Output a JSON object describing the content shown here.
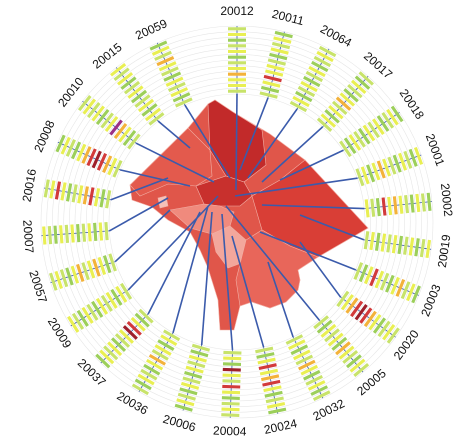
{
  "chart_data": {
    "type": "radial-glyph-map",
    "title": "",
    "rings": 12,
    "colors": {
      "seg_light": "#c8e36a",
      "seg_green": "#9ccf5a",
      "seg_yellow": "#e9ef52",
      "seg_orange": "#f3b23a",
      "seg_red": "#d23a3a",
      "seg_darkred": "#9e1f2a",
      "seg_purple": "#9b2f86",
      "leader": "#3b5bab",
      "map_base": "#e0564a",
      "map_dark": "#c22a2a",
      "map_light": "#f3a79c"
    },
    "glyphs": [
      {
        "zip": "20012",
        "angle": -90,
        "bars": [
          "l",
          "y",
          "y",
          "o",
          "y",
          "l",
          "g",
          "y",
          "l",
          "g",
          "y",
          "l"
        ]
      },
      {
        "zip": "20011",
        "angle": -76,
        "bars": [
          "l",
          "g",
          "y",
          "r",
          "y",
          "y",
          "l",
          "g",
          "y",
          "l",
          "y",
          "g"
        ]
      },
      {
        "zip": "20064",
        "angle": -62,
        "bars": [
          "l",
          "y",
          "g",
          "l",
          "y",
          "g",
          "l",
          "y",
          "g",
          "l",
          "y",
          "l"
        ]
      },
      {
        "zip": "20017",
        "angle": -48,
        "bars": [
          "l",
          "y",
          "g",
          "y",
          "l",
          "o",
          "y",
          "g",
          "l",
          "y",
          "g",
          "l"
        ]
      },
      {
        "zip": "20018",
        "angle": -34,
        "bars": [
          "l",
          "g",
          "y",
          "l",
          "g",
          "y",
          "l",
          "y",
          "g",
          "l",
          "y",
          "g"
        ]
      },
      {
        "zip": "20001",
        "angle": -20,
        "bars": [
          "l",
          "y",
          "g",
          "y",
          "o",
          "y",
          "l",
          "g",
          "y",
          "l",
          "g",
          "y"
        ]
      },
      {
        "zip": "20002",
        "angle": -6,
        "bars": [
          "y",
          "l",
          "g",
          "r",
          "y",
          "o",
          "y",
          "l",
          "g",
          "y",
          "l",
          "g"
        ]
      },
      {
        "zip": "20019",
        "angle": 8,
        "bars": [
          "l",
          "y",
          "g",
          "y",
          "l",
          "y",
          "g",
          "l",
          "y",
          "g",
          "l",
          "y"
        ]
      },
      {
        "zip": "20003",
        "angle": 22,
        "bars": [
          "l",
          "g",
          "y",
          "r",
          "y",
          "l",
          "g",
          "y",
          "o",
          "l",
          "y",
          "g"
        ]
      },
      {
        "zip": "20020",
        "angle": 36,
        "bars": [
          "l",
          "y",
          "o",
          "r",
          "d",
          "r",
          "o",
          "y",
          "g",
          "l",
          "y",
          "l"
        ]
      },
      {
        "zip": "20005",
        "angle": 50,
        "bars": [
          "l",
          "g",
          "y",
          "l",
          "y",
          "g",
          "o",
          "y",
          "l",
          "g",
          "y",
          "l"
        ]
      },
      {
        "zip": "20032",
        "angle": 64,
        "bars": [
          "l",
          "y",
          "g",
          "y",
          "l",
          "o",
          "y",
          "g",
          "l",
          "y",
          "g",
          "l"
        ]
      },
      {
        "zip": "20024",
        "angle": 78,
        "bars": [
          "l",
          "g",
          "y",
          "r",
          "y",
          "o",
          "r",
          "y",
          "g",
          "l",
          "y",
          "g"
        ]
      },
      {
        "zip": "20004",
        "angle": 92,
        "bars": [
          "l",
          "y",
          "g",
          "d",
          "y",
          "l",
          "r",
          "y",
          "g",
          "l",
          "y",
          "l"
        ]
      },
      {
        "zip": "20006",
        "angle": 106,
        "bars": [
          "l",
          "g",
          "y",
          "l",
          "y",
          "g",
          "l",
          "y",
          "g",
          "l",
          "y",
          "g"
        ]
      },
      {
        "zip": "20036",
        "angle": 120,
        "bars": [
          "l",
          "y",
          "g",
          "y",
          "l",
          "o",
          "y",
          "g",
          "l",
          "y",
          "g",
          "l"
        ]
      },
      {
        "zip": "20037",
        "angle": 134,
        "bars": [
          "l",
          "g",
          "y",
          "r",
          "d",
          "y",
          "l",
          "g",
          "y",
          "l",
          "y",
          "g"
        ]
      },
      {
        "zip": "20009",
        "angle": 148,
        "bars": [
          "l",
          "y",
          "g",
          "y",
          "l",
          "y",
          "g",
          "l",
          "y",
          "g",
          "l",
          "y"
        ]
      },
      {
        "zip": "20057",
        "angle": 162,
        "bars": [
          "l",
          "g",
          "y",
          "o",
          "y",
          "l",
          "o",
          "y",
          "g",
          "l",
          "y",
          "l"
        ]
      },
      {
        "zip": "20007",
        "angle": 176,
        "bars": [
          "l",
          "y",
          "g",
          "y",
          "l",
          "g",
          "y",
          "l",
          "y",
          "g",
          "l",
          "y"
        ]
      },
      {
        "zip": "20016",
        "angle": 190,
        "bars": [
          "l",
          "g",
          "y",
          "r",
          "o",
          "y",
          "l",
          "g",
          "y",
          "r",
          "y",
          "l"
        ]
      },
      {
        "zip": "20008",
        "angle": 204,
        "bars": [
          "l",
          "y",
          "o",
          "r",
          "d",
          "r",
          "o",
          "y",
          "g",
          "l",
          "y",
          "g"
        ]
      },
      {
        "zip": "20010",
        "angle": 218,
        "bars": [
          "l",
          "g",
          "y",
          "o",
          "p",
          "y",
          "l",
          "g",
          "y",
          "l",
          "y",
          "l"
        ]
      },
      {
        "zip": "20015",
        "angle": 232,
        "bars": [
          "l",
          "y",
          "g",
          "y",
          "l",
          "g",
          "y",
          "l",
          "g",
          "y",
          "l",
          "y"
        ]
      },
      {
        "zip": "20059",
        "angle": 246,
        "bars": [
          "l",
          "g",
          "y",
          "l",
          "y",
          "g",
          "l",
          "y",
          "o",
          "l",
          "y",
          "g"
        ]
      }
    ],
    "leader_targets": {
      "20012": [
        236,
        190
      ],
      "20011": [
        240,
        170
      ],
      "20064": [
        248,
        178
      ],
      "20017": [
        262,
        182
      ],
      "20018": [
        280,
        180
      ],
      "20001": [
        235,
        196
      ],
      "20002": [
        262,
        205
      ],
      "20019": [
        300,
        215
      ],
      "20003": [
        260,
        232
      ],
      "20020": [
        300,
        242
      ],
      "20005": [
        226,
        206
      ],
      "20032": [
        268,
        262
      ],
      "20024": [
        232,
        236
      ],
      "20004": [
        222,
        214
      ],
      "20006": [
        212,
        212
      ],
      "20036": [
        208,
        206
      ],
      "20037": [
        200,
        212
      ],
      "20009": [
        218,
        196
      ],
      "20057": [
        170,
        210
      ],
      "20007": [
        168,
        198
      ],
      "20016": [
        168,
        178
      ],
      "20008": [
        190,
        186
      ],
      "20010": [
        214,
        182
      ],
      "20015": [
        190,
        148
      ],
      "20059": [
        230,
        178
      ]
    }
  }
}
